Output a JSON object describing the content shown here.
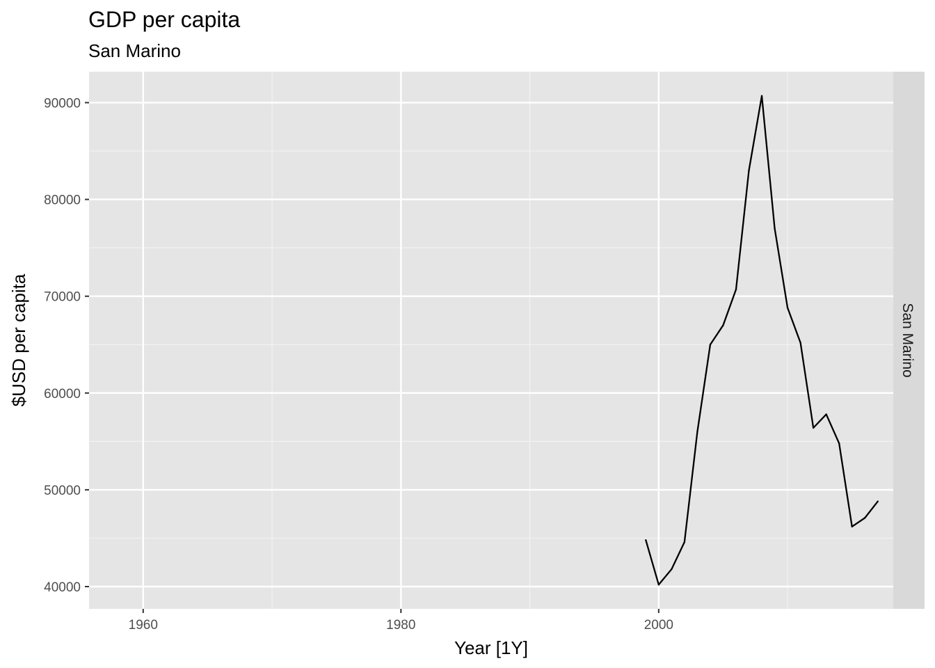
{
  "chart_data": {
    "type": "line",
    "title": "GDP per capita",
    "subtitle": "San Marino",
    "xlabel": "Year [1Y]",
    "ylabel": "$USD per capita",
    "facet_label": "San Marino",
    "xlim": [
      1955.8,
      2018.2
    ],
    "ylim": [
      37700,
      93200
    ],
    "x_ticks": [
      1960,
      1980,
      2000
    ],
    "x_minor_ticks": [
      1970,
      1990,
      2010
    ],
    "y_ticks": [
      40000,
      50000,
      60000,
      70000,
      80000,
      90000
    ],
    "y_minor_ticks": [
      45000,
      55000,
      65000,
      75000,
      85000
    ],
    "grid": true,
    "colors": {
      "panel_bg": "#e5e5e5",
      "grid_major": "#ffffff",
      "grid_minor": "#f2f2f2",
      "strip_bg": "#d9d9d9",
      "line": "#000000"
    },
    "series": [
      {
        "x": [
          1999,
          2000,
          2001,
          2002,
          2003,
          2004,
          2005,
          2006,
          2007,
          2008,
          2009,
          2010,
          2011,
          2012,
          2013,
          2014,
          2015,
          2016,
          2017
        ],
        "values": [
          44800,
          40200,
          41800,
          44600,
          56000,
          65000,
          67000,
          70700,
          83000,
          90700,
          77000,
          68800,
          65200,
          56400,
          57800,
          54800,
          46200,
          47100,
          48800
        ]
      }
    ]
  }
}
